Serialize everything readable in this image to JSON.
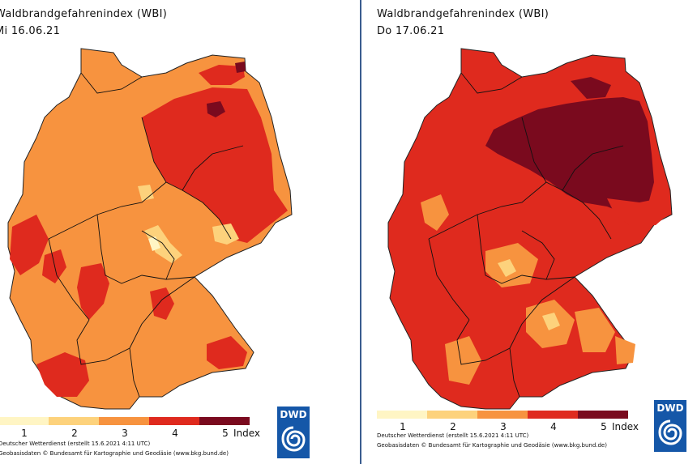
{
  "legend_colors": {
    "1": "#fff5c4",
    "2": "#fdd27c",
    "3": "#f7933f",
    "4": "#df2a1e",
    "5": "#7a0a1e"
  },
  "maps": [
    {
      "title": "Waldbrandgefahrenindex (WBI)",
      "date": "Mi 16.06.21",
      "dominant_level": 3,
      "legend": {
        "labels": [
          "1",
          "2",
          "3",
          "4",
          "5"
        ],
        "unit": "Index"
      },
      "credits": [
        "Deutscher Wetterdienst (erstellt 15.6.2021 4:11 UTC)",
        "Geobasisdaten © Bundesamt für Kartographie und Geodäsie (www.bkg.bund.de)"
      ],
      "logo": {
        "text": "DWD"
      }
    },
    {
      "title": "Waldbrandgefahrenindex (WBI)",
      "date": "Do 17.06.21",
      "dominant_level": 4,
      "legend": {
        "labels": [
          "1",
          "2",
          "3",
          "4",
          "5"
        ],
        "unit": "Index"
      },
      "credits": [
        "Deutscher Wetterdienst (erstellt 15.6.2021 4:11 UTC)",
        "Geobasisdaten © Bundesamt für Kartographie und Geodäsie (www.bkg.bund.de)"
      ],
      "logo": {
        "text": "DWD"
      }
    }
  ]
}
